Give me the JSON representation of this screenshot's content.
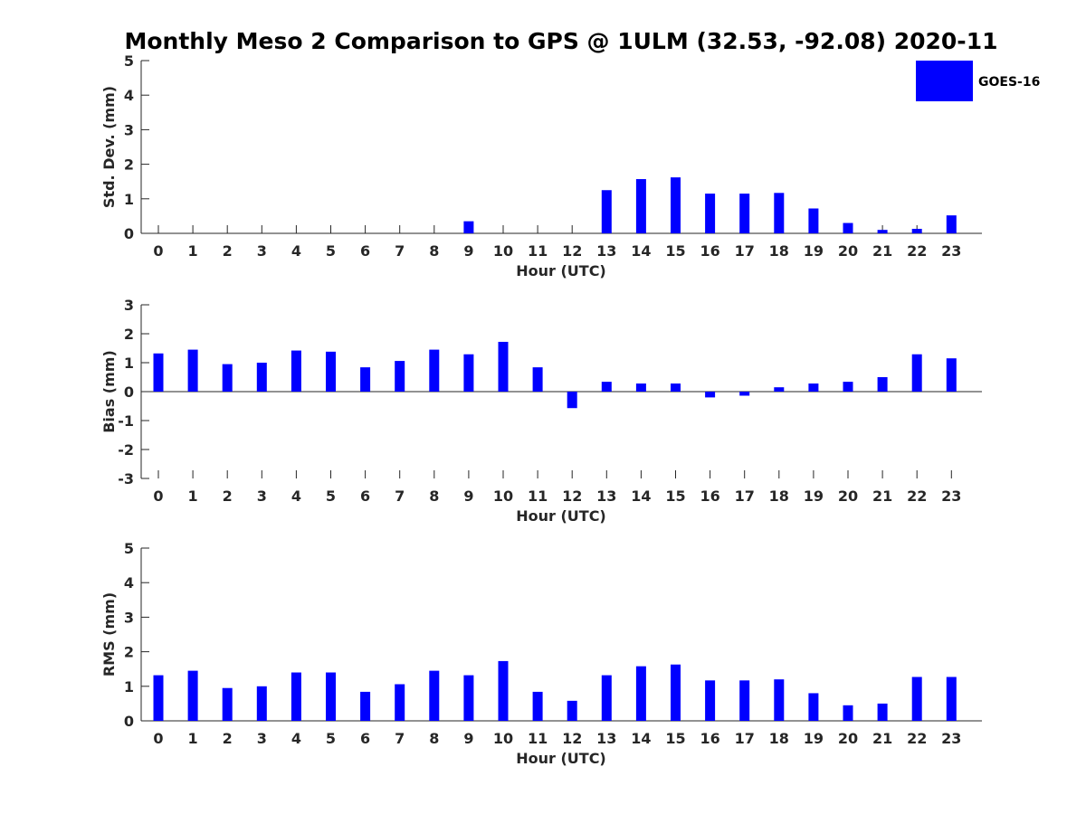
{
  "chart_data": {
    "title": "Monthly Meso 2 Comparison to GPS @ 1ULM (32.53, -92.08) 2020-11",
    "legend": {
      "label": "GOES-16",
      "color": "#0000ff",
      "placement": "top-right"
    },
    "bar_color": "#0000ff",
    "panels": [
      {
        "type": "bar",
        "name": "std-dev",
        "xlabel": "Hour (UTC)",
        "ylabel": "Std. Dev. (mm)",
        "ylim": [
          0,
          5
        ],
        "yticks": [
          "0",
          "1",
          "2",
          "3",
          "4",
          "5"
        ],
        "categories": [
          "0",
          "1",
          "2",
          "3",
          "4",
          "5",
          "6",
          "7",
          "8",
          "9",
          "10",
          "11",
          "12",
          "13",
          "14",
          "15",
          "16",
          "17",
          "18",
          "19",
          "20",
          "21",
          "22",
          "23"
        ],
        "values": [
          null,
          null,
          null,
          null,
          null,
          null,
          null,
          null,
          null,
          0.35,
          null,
          null,
          null,
          1.25,
          1.57,
          1.62,
          1.15,
          1.15,
          1.17,
          0.72,
          0.3,
          0.1,
          0.13,
          0.52
        ]
      },
      {
        "type": "bar",
        "name": "bias",
        "xlabel": "Hour (UTC)",
        "ylabel": "Bias (mm)",
        "ylim": [
          -3,
          3
        ],
        "yticks": [
          "-3",
          "-2",
          "-1",
          "0",
          "1",
          "2",
          "3"
        ],
        "categories": [
          "0",
          "1",
          "2",
          "3",
          "4",
          "5",
          "6",
          "7",
          "8",
          "9",
          "10",
          "11",
          "12",
          "13",
          "14",
          "15",
          "16",
          "17",
          "18",
          "19",
          "20",
          "21",
          "22",
          "23"
        ],
        "values": [
          1.32,
          1.45,
          0.95,
          1.0,
          1.42,
          1.38,
          0.84,
          1.06,
          1.45,
          1.29,
          1.72,
          0.84,
          -0.57,
          0.34,
          0.28,
          0.28,
          -0.2,
          -0.14,
          0.15,
          0.28,
          0.34,
          0.5,
          1.29,
          1.15
        ]
      },
      {
        "type": "bar",
        "name": "rms",
        "xlabel": "Hour (UTC)",
        "ylabel": "RMS (mm)",
        "ylim": [
          0,
          5
        ],
        "yticks": [
          "0",
          "1",
          "2",
          "3",
          "4",
          "5"
        ],
        "categories": [
          "0",
          "1",
          "2",
          "3",
          "4",
          "5",
          "6",
          "7",
          "8",
          "9",
          "10",
          "11",
          "12",
          "13",
          "14",
          "15",
          "16",
          "17",
          "18",
          "19",
          "20",
          "21",
          "22",
          "23"
        ],
        "values": [
          1.32,
          1.45,
          0.95,
          1.0,
          1.4,
          1.4,
          0.84,
          1.06,
          1.45,
          1.32,
          1.73,
          0.84,
          0.58,
          1.32,
          1.58,
          1.63,
          1.17,
          1.17,
          1.2,
          0.8,
          0.45,
          0.5,
          1.27,
          1.27
        ]
      }
    ]
  }
}
